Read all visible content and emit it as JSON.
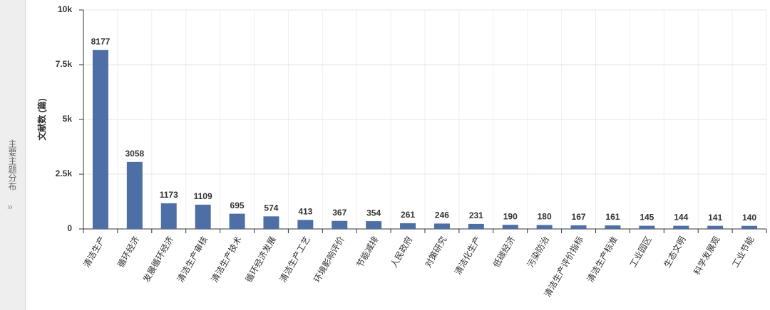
{
  "sidebar": {
    "title": "主要主题分布",
    "toggle": "»"
  },
  "chart_data": {
    "type": "bar",
    "ylabel": "文献数 (篇)",
    "categories": [
      "清洁生产",
      "循环经济",
      "发展循环经济",
      "清洁生产审核",
      "清洁生产技术",
      "循环经济发展",
      "清洁生产工艺",
      "环境影响评价",
      "节能减排",
      "人民政府",
      "对策研究",
      "清洁化生产",
      "低碳经济",
      "污染防治",
      "清洁生产评价指标",
      "清洁生产标准",
      "工业园区",
      "生态文明",
      "科学发展观",
      "工业节能"
    ],
    "values": [
      8177,
      3058,
      1173,
      1109,
      695,
      574,
      413,
      367,
      354,
      261,
      246,
      231,
      190,
      180,
      167,
      161,
      145,
      144,
      141,
      140
    ],
    "color": "#4e6fa6",
    "ylim": [
      0,
      10000
    ],
    "yticks": [
      0,
      {
        "value": 2500,
        "label": "2.5k"
      },
      {
        "value": 5000,
        "label": "5k"
      },
      {
        "value": 7500,
        "label": "7.5k"
      },
      {
        "value": 10000,
        "label": "10k"
      }
    ],
    "grid": true
  }
}
